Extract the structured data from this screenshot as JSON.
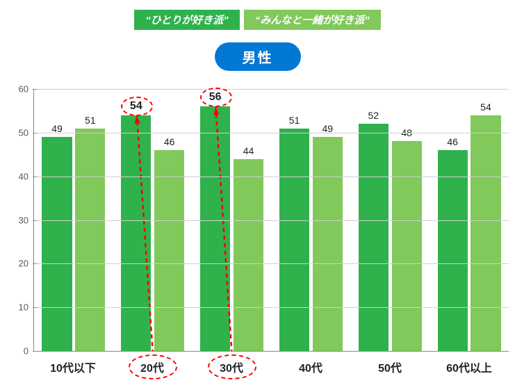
{
  "legend": {
    "items": [
      {
        "label": "“ひとりが好き派”",
        "color": "#2fb24c"
      },
      {
        "label": "“みんなと一緒が好き派”",
        "color": "#81c95a"
      }
    ]
  },
  "title": {
    "text": "男性",
    "bg": "#0078d4",
    "color": "#ffffff"
  },
  "chart": {
    "type": "bar",
    "ylim": [
      0,
      60
    ],
    "ytick_step": 10,
    "grid_color": "#d0d0d0",
    "axis_color": "#888888",
    "background_color": "#ffffff",
    "series_colors": [
      "#2fb24c",
      "#81c95a"
    ],
    "categories": [
      "10代以下",
      "20代",
      "30代",
      "40代",
      "50代",
      "60代以上"
    ],
    "series": [
      {
        "name": "ひとりが好き派",
        "values": [
          49,
          54,
          56,
          51,
          52,
          46
        ]
      },
      {
        "name": "みんなと一緒が好き派",
        "values": [
          51,
          46,
          44,
          49,
          48,
          54
        ]
      }
    ],
    "highlights": {
      "bar_labels": [
        {
          "category_index": 1,
          "series_index": 0
        },
        {
          "category_index": 2,
          "series_index": 0
        }
      ],
      "x_labels": [
        {
          "category_index": 1
        },
        {
          "category_index": 2
        }
      ],
      "arrow_color": "#ff0000"
    },
    "label_fontsize": 14,
    "xlabel_fontsize": 16,
    "ylabel_fontsize": 13
  }
}
